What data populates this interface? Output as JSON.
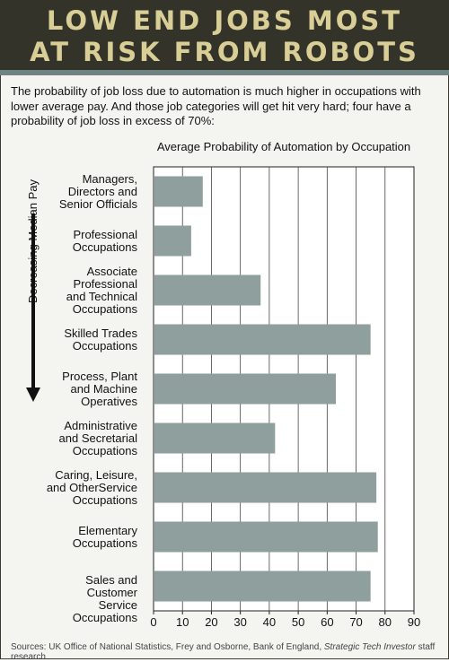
{
  "header": {
    "title_line1": "LOW END JOBS MOST",
    "title_line2": "AT RISK FROM ROBOTS"
  },
  "intro": "The probability of job loss due to automation is much higher in occupations with lower average pay. And those job categories will get hit very hard;  four have a probability of job loss in excess of 70%:",
  "side_label": "Decreasing Median Pay",
  "sources": {
    "prefix": "Sources: UK Office of National Statistics, Frey and Osborne, Bank of England, ",
    "italic": "Strategic Tech Investor",
    "suffix": " staff research"
  },
  "colors": {
    "bar": "#8e9f9d",
    "title_bg": "#34332a",
    "title_text": "#d9cf96"
  },
  "chart_data": {
    "type": "bar",
    "orientation": "horizontal",
    "title": "Average Probability of Automation by Occupation",
    "categories": [
      "Managers, Directors and Senior Officials",
      "Professional Occupations",
      "Associate Professional and Technical Occupations",
      "Skilled Trades Occupations",
      "Process, Plant and Machine Operatives",
      "Administrative and Secretarial Occupations",
      "Caring, Leisure, and OtherService Occupations",
      "Elementary Occupations",
      "Sales and Customer Service Occupations"
    ],
    "category_lines": [
      [
        "Managers,",
        "Directors and",
        "Senior Officials"
      ],
      [
        "Professional",
        "Occupations"
      ],
      [
        "Associate",
        "Professional",
        "and Technical",
        "Occupations"
      ],
      [
        "Skilled Trades",
        "Occupations"
      ],
      [
        "Process, Plant",
        "and Machine",
        "Operatives"
      ],
      [
        "Administrative",
        "and Secretarial",
        "Occupations"
      ],
      [
        "Caring, Leisure,",
        "and OtherService",
        "Occupations"
      ],
      [
        "Elementary",
        "Occupations"
      ],
      [
        "Sales and Customer",
        "Service Occupations"
      ]
    ],
    "values": [
      17,
      13,
      37,
      75,
      63,
      42,
      77,
      77.5,
      75
    ],
    "xlim": [
      0,
      90
    ],
    "xticks": [
      0,
      10,
      20,
      30,
      40,
      50,
      60,
      70,
      80,
      90
    ],
    "grid": "vertical",
    "xlabel": "",
    "ylabel": ""
  }
}
